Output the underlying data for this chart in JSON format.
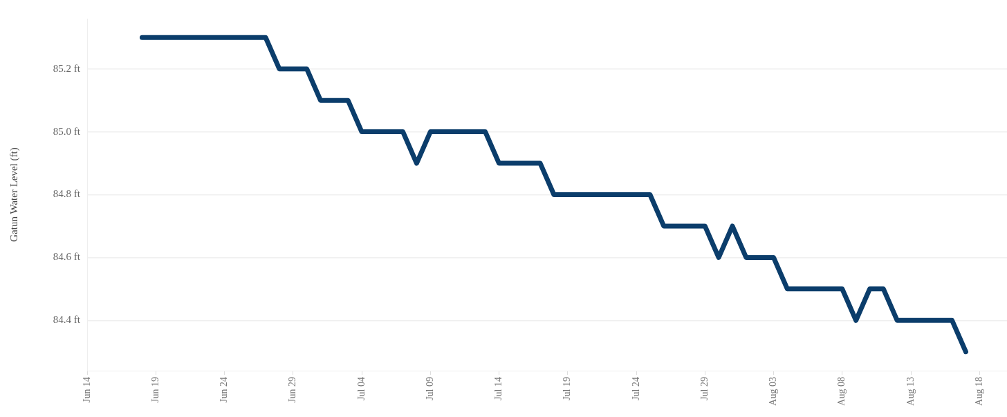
{
  "chart_data": {
    "type": "line",
    "ylabel": "Gatun Water Level (ft)",
    "x": [
      "--06-18",
      "--06-19",
      "--06-20",
      "--06-21",
      "--06-22",
      "--06-23",
      "--06-24",
      "--06-25",
      "--06-26",
      "--06-27",
      "--06-28",
      "--06-29",
      "--06-30",
      "--07-01",
      "--07-02",
      "--07-03",
      "--07-04",
      "--07-05",
      "--07-06",
      "--07-07",
      "--07-08",
      "--07-09",
      "--07-10",
      "--07-11",
      "--07-12",
      "--07-13",
      "--07-14",
      "--07-15",
      "--07-16",
      "--07-17",
      "--07-18",
      "--07-19",
      "--07-20",
      "--07-21",
      "--07-22",
      "--07-23",
      "--07-24",
      "--07-25",
      "--07-26",
      "--07-27",
      "--07-28",
      "--07-29",
      "--07-30",
      "--07-31",
      "--08-01",
      "--08-02",
      "--08-03",
      "--08-04",
      "--08-05",
      "--08-06",
      "--08-07",
      "--08-08",
      "--08-09",
      "--08-10",
      "--08-11",
      "--08-12",
      "--08-13",
      "--08-14",
      "--08-15",
      "--08-16",
      "--08-17"
    ],
    "series": [
      {
        "color": "#0b3d6b",
        "values": [
          85.3,
          85.3,
          85.3,
          85.3,
          85.3,
          85.3,
          85.3,
          85.3,
          85.3,
          85.3,
          85.2,
          85.2,
          85.2,
          85.1,
          85.1,
          85.1,
          85.0,
          85.0,
          85.0,
          85.0,
          84.9,
          85.0,
          85.0,
          85.0,
          85.0,
          85.0,
          84.9,
          84.9,
          84.9,
          84.9,
          84.8,
          84.8,
          84.8,
          84.8,
          84.8,
          84.8,
          84.8,
          84.8,
          84.7,
          84.7,
          84.7,
          84.7,
          84.6,
          84.7,
          84.6,
          84.6,
          84.6,
          84.5,
          84.5,
          84.5,
          84.5,
          84.5,
          84.4,
          84.5,
          84.5,
          84.4,
          84.4,
          84.4,
          84.4,
          84.4,
          84.3
        ]
      }
    ],
    "xlim": [
      "--06-14",
      "--08-20"
    ],
    "xticks": [
      {
        "value": "--06-14",
        "label": "Jun 14"
      },
      {
        "value": "--06-19",
        "label": "Jun 19"
      },
      {
        "value": "--06-24",
        "label": "Jun 24"
      },
      {
        "value": "--06-29",
        "label": "Jun 29"
      },
      {
        "value": "--07-04",
        "label": "Jul 04"
      },
      {
        "value": "--07-09",
        "label": "Jul 09"
      },
      {
        "value": "--07-14",
        "label": "Jul 14"
      },
      {
        "value": "--07-19",
        "label": "Jul 19"
      },
      {
        "value": "--07-24",
        "label": "Jul 24"
      },
      {
        "value": "--07-29",
        "label": "Jul 29"
      },
      {
        "value": "--08-03",
        "label": "Aug 03"
      },
      {
        "value": "--08-08",
        "label": "Aug 08"
      },
      {
        "value": "--08-13",
        "label": "Aug 13"
      },
      {
        "value": "--08-18",
        "label": "Aug 18"
      }
    ],
    "ylim": [
      84.24,
      85.36
    ],
    "yticks": [
      {
        "value": 84.4,
        "label": "84.4 ft"
      },
      {
        "value": 84.6,
        "label": "84.6 ft"
      },
      {
        "value": 84.8,
        "label": "84.8 ft"
      },
      {
        "value": 85.0,
        "label": "85.0 ft"
      },
      {
        "value": 85.2,
        "label": "85.2 ft"
      }
    ],
    "grid": "y",
    "legend": false
  }
}
